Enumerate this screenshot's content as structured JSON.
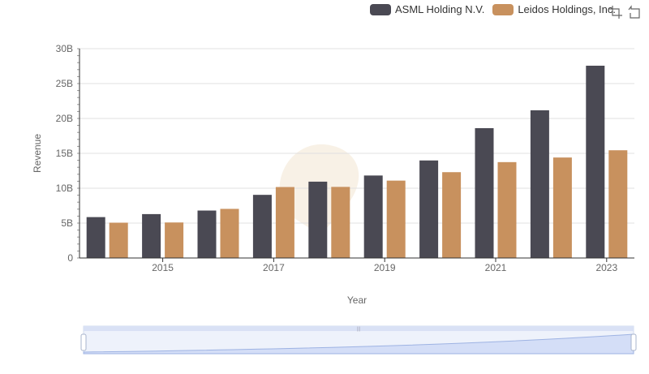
{
  "chart_data": {
    "type": "bar",
    "xlabel": "Year",
    "ylabel": "Revenue",
    "x": [
      2014,
      2015,
      2016,
      2017,
      2018,
      2019,
      2020,
      2021,
      2022,
      2023
    ],
    "x_tick_labels": [
      "2015",
      "2017",
      "2019",
      "2021",
      "2023"
    ],
    "y_tick_labels": [
      "0",
      "5B",
      "10B",
      "15B",
      "20B",
      "25B",
      "30B"
    ],
    "ylim": [
      0,
      30000000000
    ],
    "grid": true,
    "legend_position": "top-right",
    "series": [
      {
        "name": "ASML Holding N.V.",
        "color": "#4a4953",
        "values": [
          5860000000,
          6290000000,
          6800000000,
          9050000000,
          10940000000,
          11820000000,
          13980000000,
          18610000000,
          21170000000,
          27560000000
        ]
      },
      {
        "name": "Leidos Holdings, Inc.",
        "color": "#c8915e",
        "values": [
          5060000000,
          5090000000,
          7040000000,
          10170000000,
          10190000000,
          11090000000,
          12300000000,
          13740000000,
          14400000000,
          15440000000
        ]
      }
    ]
  },
  "toolbox": {
    "zoom_icon": "zoom-icon",
    "restore_icon": "restore-icon"
  },
  "slider": {
    "range_percent": [
      0,
      100
    ]
  }
}
